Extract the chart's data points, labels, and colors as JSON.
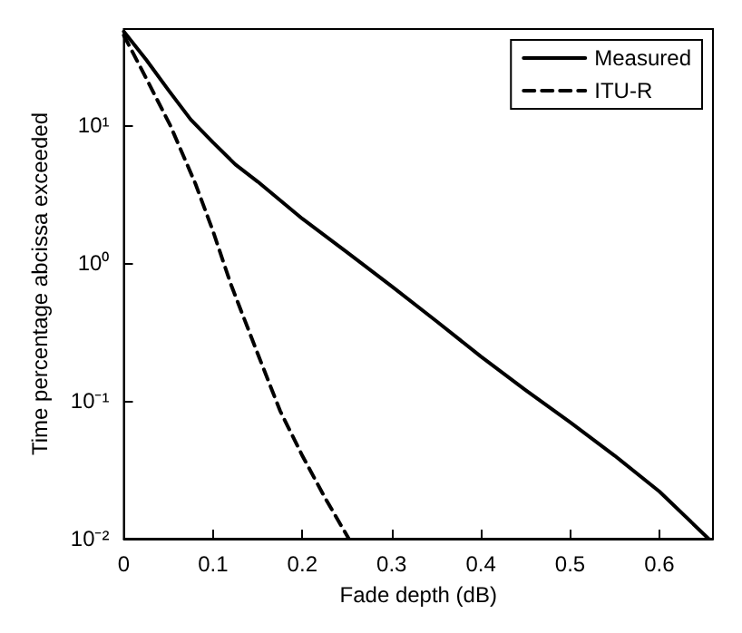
{
  "chart_data": {
    "type": "line",
    "xlabel": "Fade depth (dB)",
    "ylabel": "Time percentage abcissa exceeded",
    "log": "y",
    "xlim": [
      0,
      0.66
    ],
    "xticks": [
      0,
      0.1,
      0.2,
      0.3,
      0.4,
      0.5,
      0.6
    ],
    "ylim": [
      0.01,
      50
    ],
    "yticks": [
      {
        "value": 0.01,
        "label": "10⁻²"
      },
      {
        "value": 0.1,
        "label": "10⁻¹"
      },
      {
        "value": 1,
        "label": "10⁰"
      },
      {
        "value": 10,
        "label": "10¹"
      }
    ],
    "grid": false,
    "legend": "top right",
    "marker": "none",
    "series": [
      {
        "name": "Measured",
        "color": "#000000",
        "line_style": "solid",
        "x": [
          0,
          0.025,
          0.05,
          0.075,
          0.1,
          0.125,
          0.15,
          0.2,
          0.25,
          0.3,
          0.35,
          0.4,
          0.45,
          0.5,
          0.55,
          0.6,
          0.655
        ],
        "values": [
          48,
          30,
          18,
          11,
          7.5,
          5.2,
          3.9,
          2.1,
          1.2,
          0.68,
          0.38,
          0.21,
          0.12,
          0.07,
          0.04,
          0.022,
          0.01
        ]
      },
      {
        "name": "ITU-R",
        "color": "#000000",
        "line_style": "dashed",
        "x": [
          0,
          0.025,
          0.052,
          0.08,
          0.1,
          0.12,
          0.15,
          0.175,
          0.2,
          0.225,
          0.252
        ],
        "values": [
          45,
          22,
          10,
          3.8,
          1.7,
          0.7,
          0.22,
          0.085,
          0.04,
          0.02,
          0.01
        ]
      }
    ]
  }
}
